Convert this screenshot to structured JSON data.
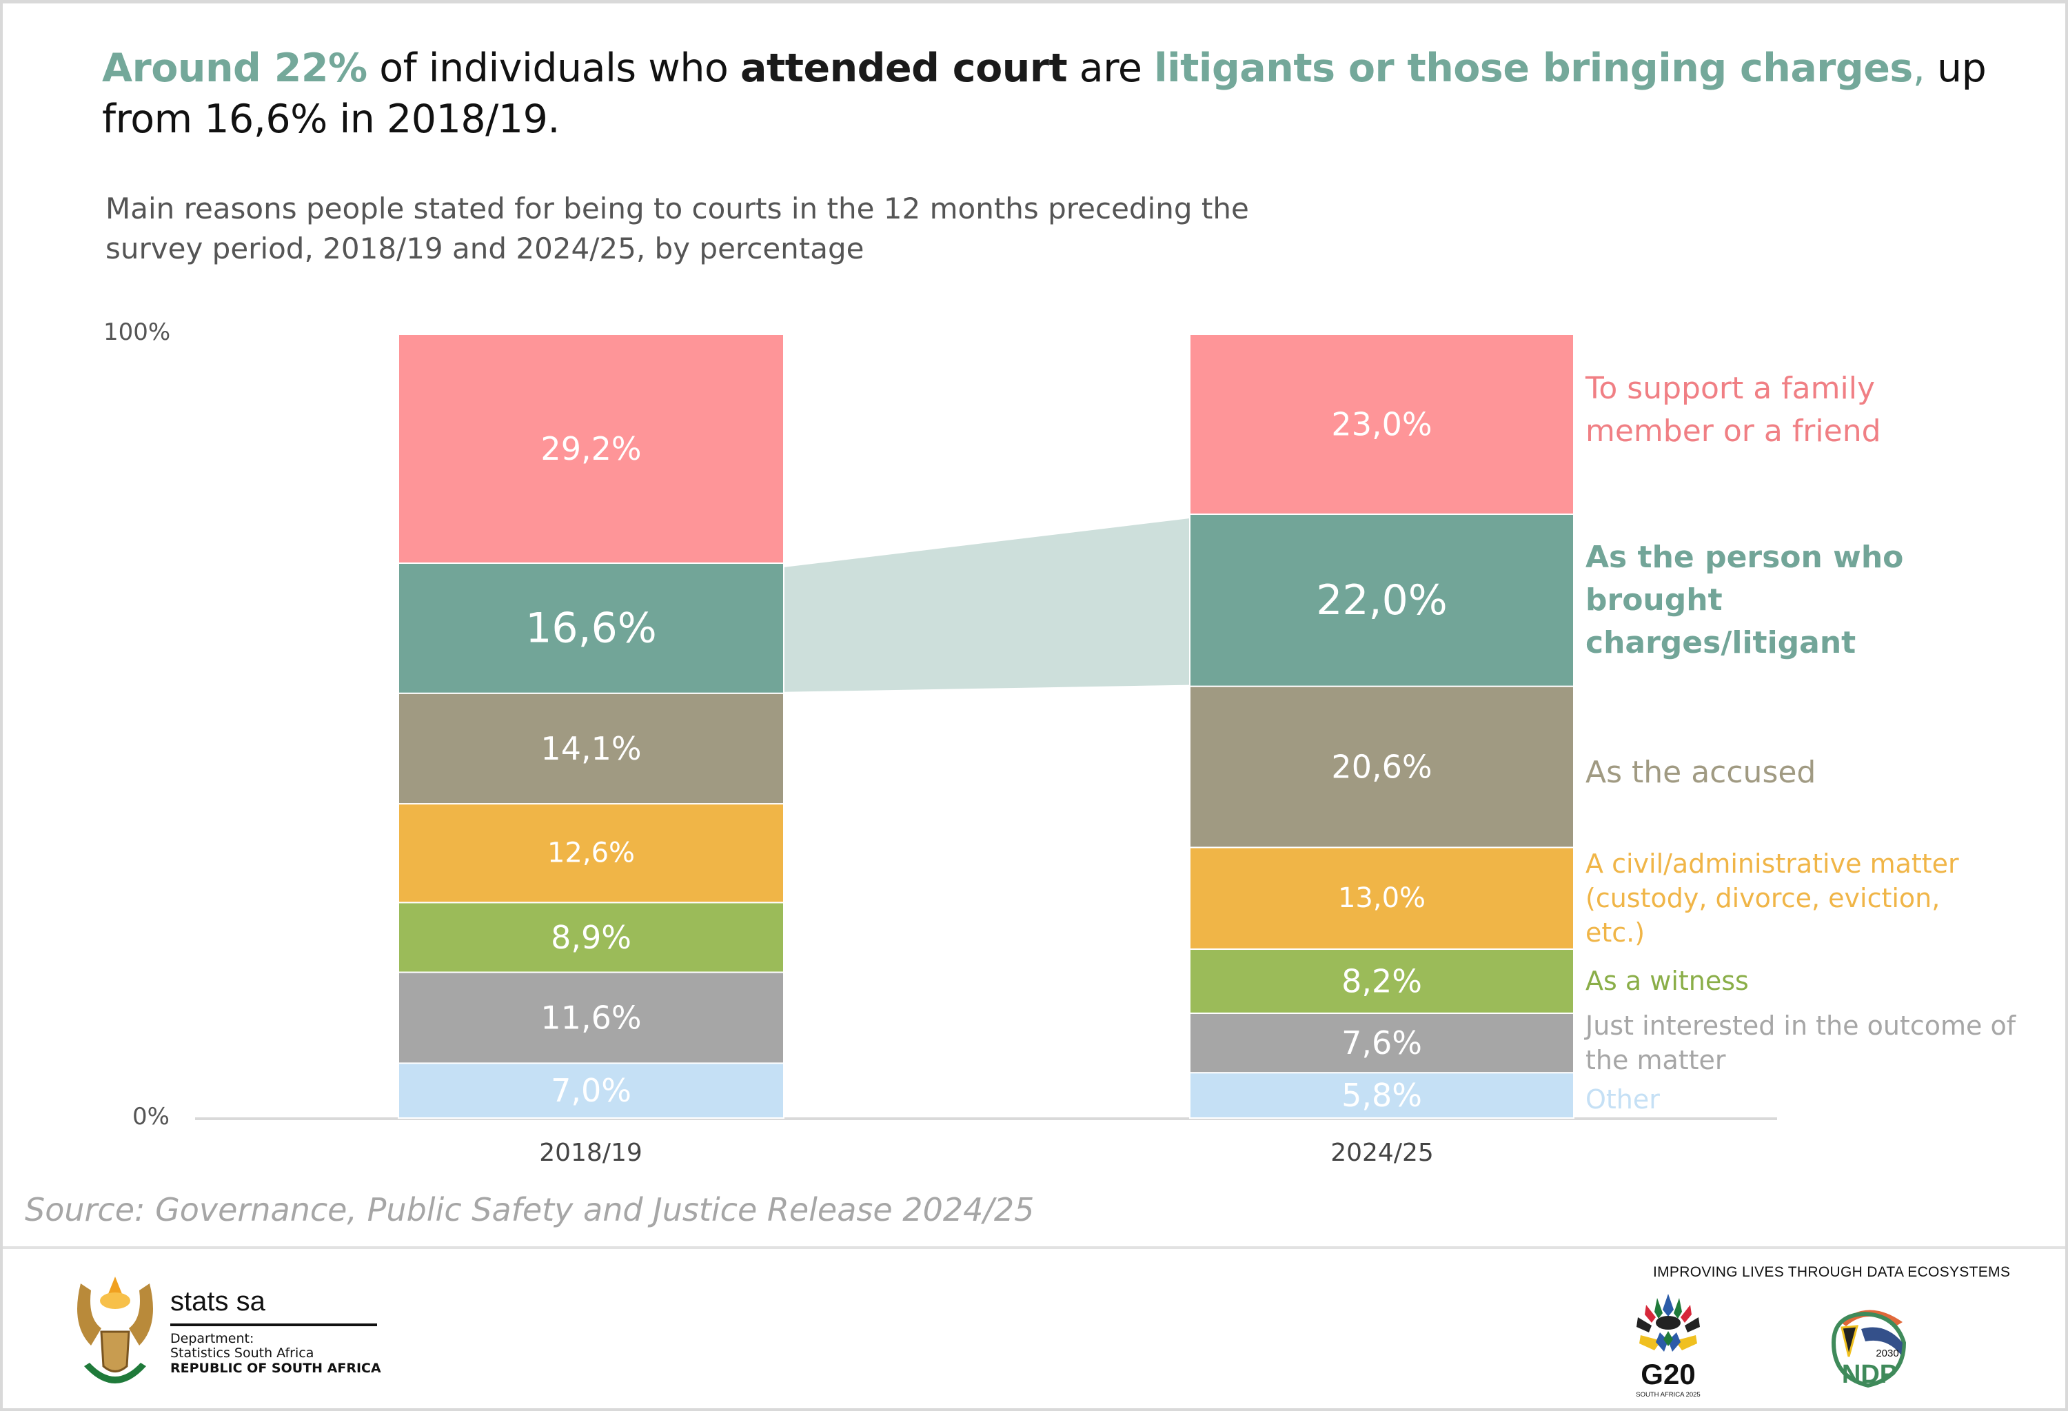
{
  "headline": {
    "part1": "Around 22%",
    "part2": " of individuals who ",
    "part3": "attended court",
    "part4": " are ",
    "part5": "litigants or those bringing charges",
    "part6": ",",
    "part7": " up from 16,6% in 2018/19."
  },
  "subtitle": "Main reasons people stated for being to courts in the 12 months preceding the survey period, 2018/19 and 2024/25, by percentage",
  "source": "Source: Governance, Public Safety and Justice Release 2024/25",
  "footer": {
    "org_name": "stats sa",
    "dept_line1": "Department:",
    "dept_line2": "Statistics South Africa",
    "country": "REPUBLIC OF SOUTH AFRICA",
    "tagline": "IMPROVING LIVES THROUGH DATA ECOSYSTEMS",
    "g20_text": "G20",
    "g20_sub": "SOUTH AFRICA 2025",
    "ndp_text": "NDP",
    "ndp_year": "2030"
  },
  "chart_data": {
    "type": "bar",
    "stacked": true,
    "percent_stacked": true,
    "title": "Main reasons people stated for being to courts in the 12 months preceding the survey period, 2018/19 and 2024/25, by percentage",
    "xlabel": "",
    "ylabel": "",
    "ylim": [
      0,
      100
    ],
    "y_ticks": [
      "0%",
      "100%"
    ],
    "categories": [
      "2018/19",
      "2024/25"
    ],
    "legend_position": "right",
    "highlight_series": "As the person who brought charges/litigant",
    "series": [
      {
        "name": "Other",
        "legend": "Other",
        "color": "#c5e0f5",
        "label_color": "#ffffff",
        "values": [
          7.0,
          5.8
        ],
        "labels": [
          "7,0%",
          "5,8%"
        ]
      },
      {
        "name": "Just interested in the outcome of the matter",
        "legend": "Just interested in the outcome of the matter",
        "color": "#a6a6a6",
        "label_color": "#a6a6a6",
        "values": [
          11.6,
          7.6
        ],
        "labels": [
          "11,6%",
          "7,6%"
        ]
      },
      {
        "name": "As a witness",
        "legend": "As a witness",
        "color": "#9bbb59",
        "label_color": "#8aae48",
        "values": [
          8.9,
          8.2
        ],
        "labels": [
          "8,9%",
          "8,2%"
        ]
      },
      {
        "name": "A civil/administrative matter (custody, divorce, eviction, etc.)",
        "legend": "A civil/administrative matter (custody, divorce, eviction, etc.)",
        "color": "#f0b547",
        "label_color": "#f0b547",
        "values": [
          12.6,
          13.0
        ],
        "labels": [
          "12,6%",
          "13,0%"
        ]
      },
      {
        "name": "As the accused",
        "legend": "As the accused",
        "color": "#a09a82",
        "label_color": "#a09a82",
        "values": [
          14.1,
          20.6
        ],
        "labels": [
          "14,1%",
          "20,6%"
        ]
      },
      {
        "name": "As the person who brought charges/litigant",
        "legend": "As the person who brought charges/litigant",
        "color": "#72a598",
        "label_color": "#72a598",
        "values": [
          16.6,
          22.0
        ],
        "labels": [
          "16,6%",
          "22,0%"
        ]
      },
      {
        "name": "To support a family member or a friend",
        "legend": "To support a family member or a friend",
        "color": "#fe9598",
        "label_color": "#f07f84",
        "values": [
          29.2,
          23.0
        ],
        "labels": [
          "29,2%",
          "23,0%"
        ]
      }
    ],
    "connector_color": "#cddfdb"
  }
}
